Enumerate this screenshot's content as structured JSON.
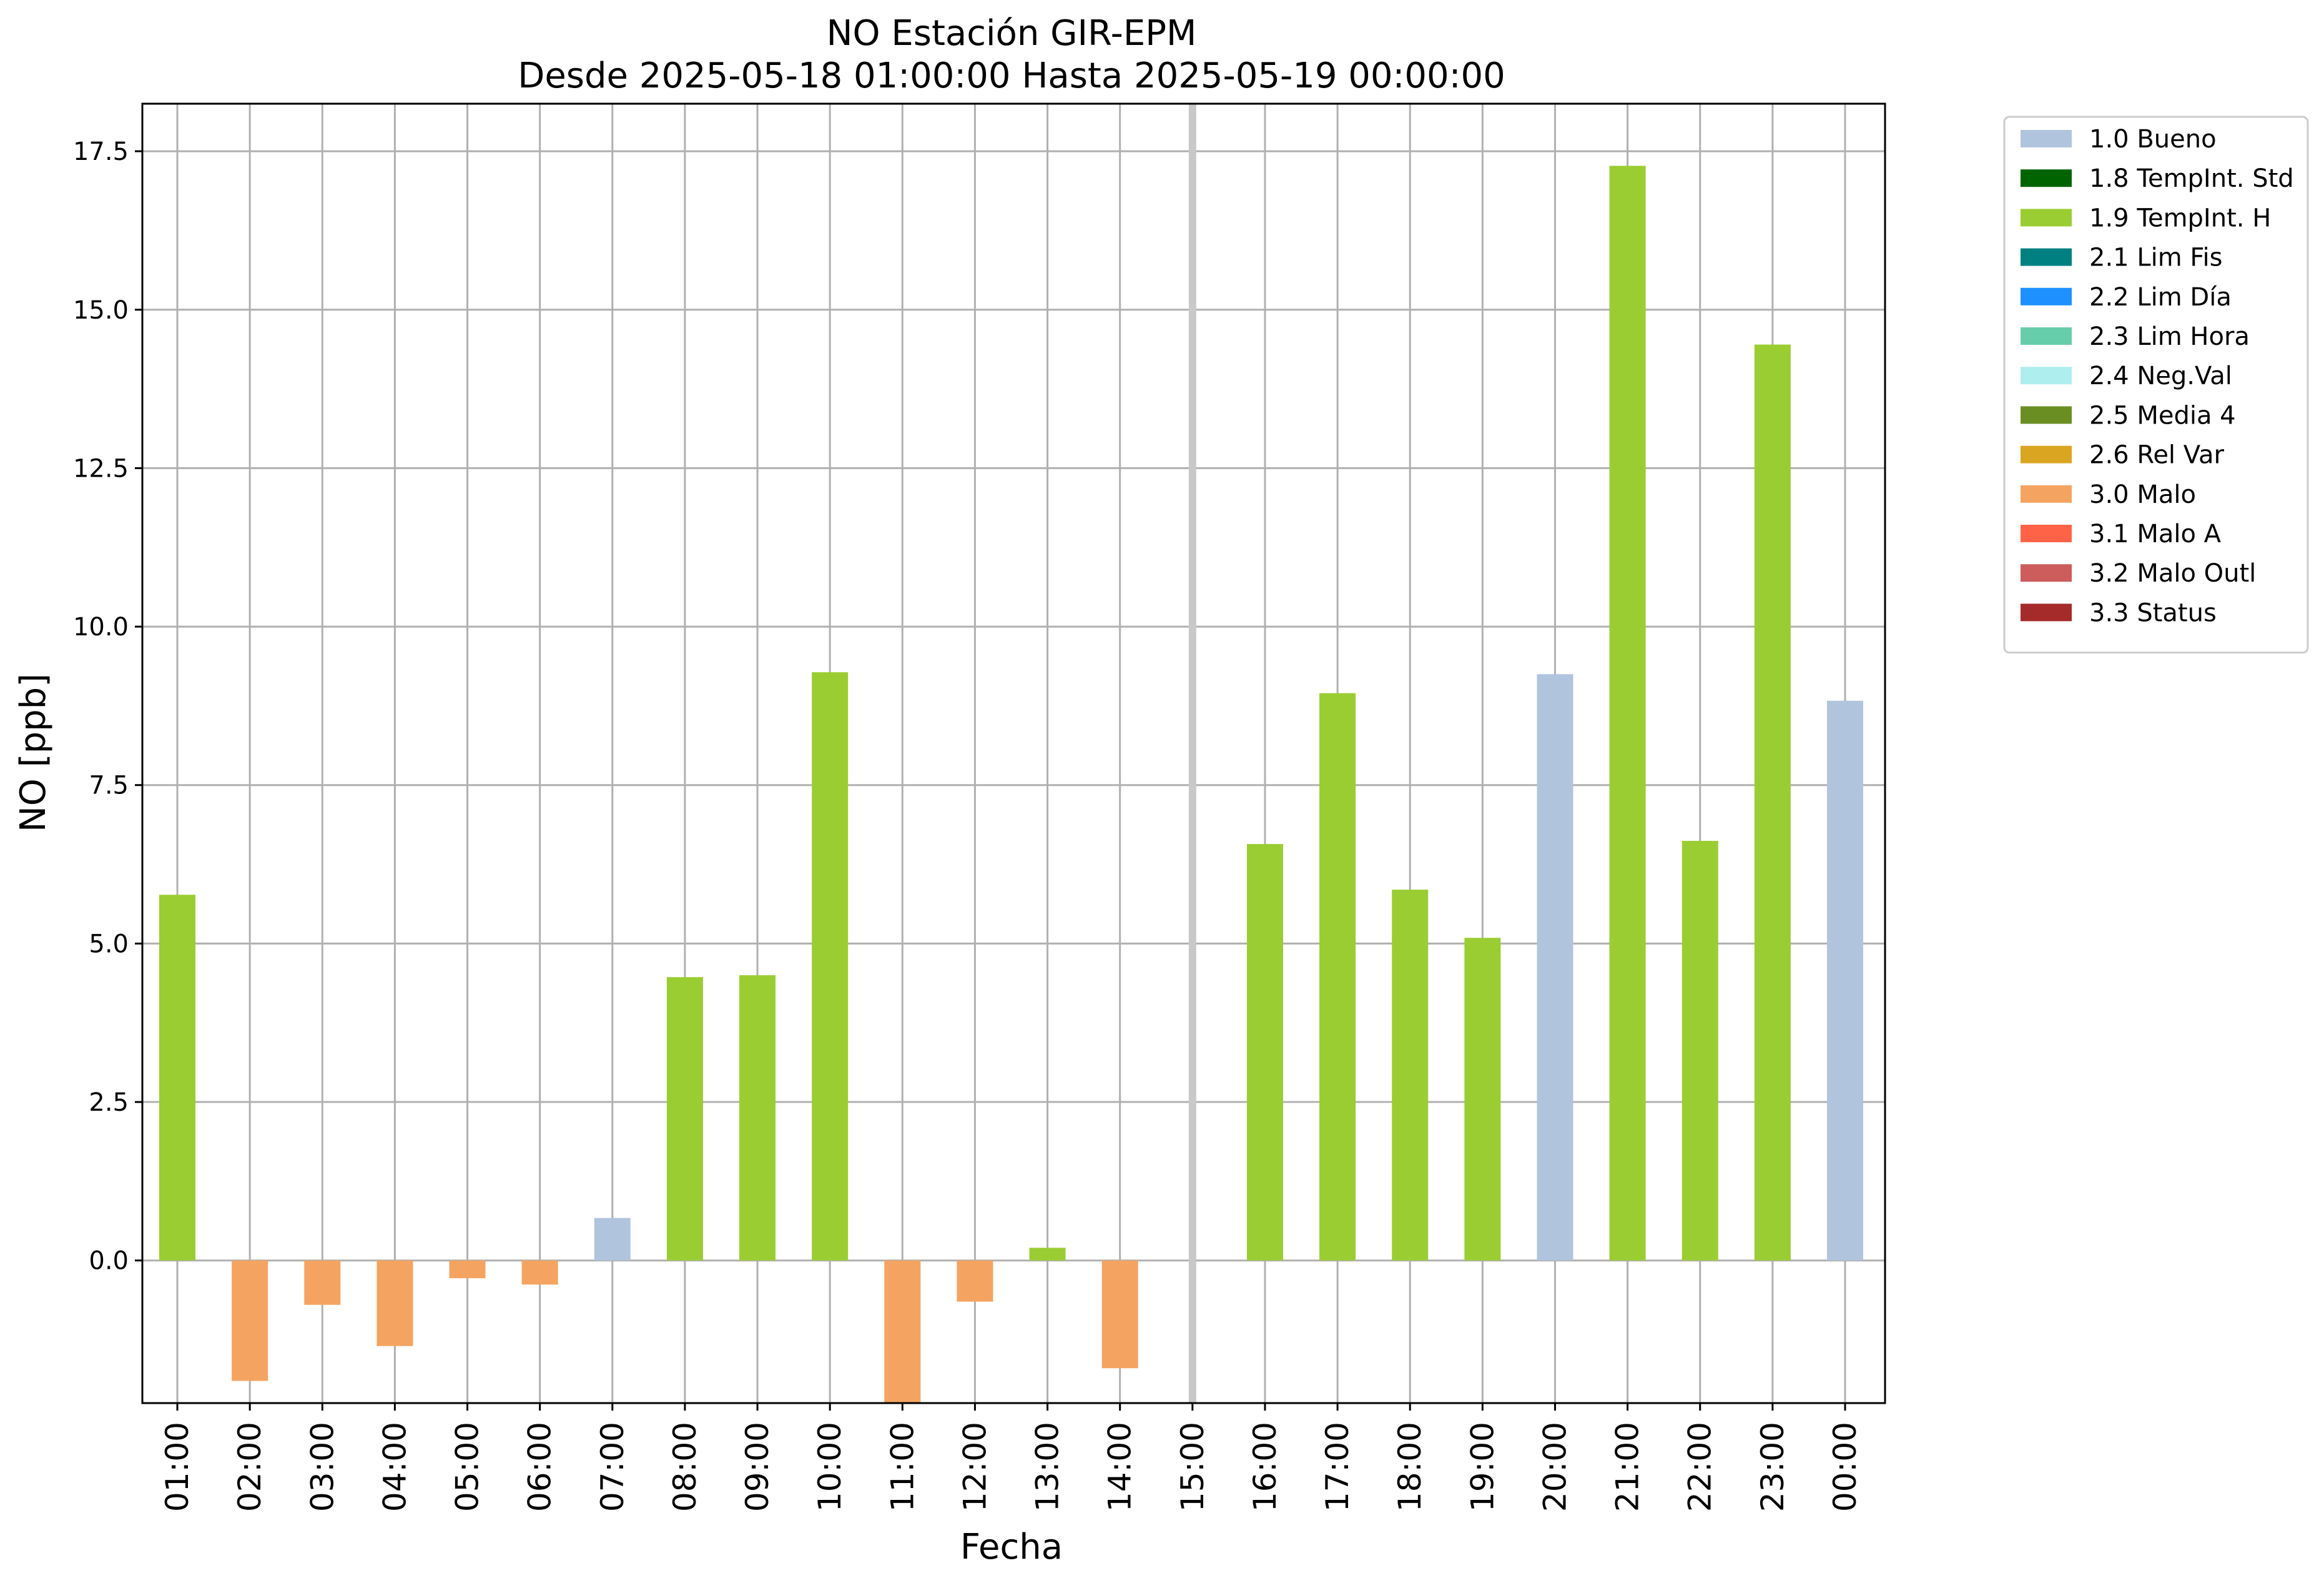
{
  "chart_data": {
    "type": "bar",
    "title": "NO Estación GIR-EPM",
    "subtitle": "Desde 2025-05-18 01:00:00 Hasta 2025-05-19 00:00:00",
    "xlabel": "Fecha",
    "ylabel": "NO [ppb]",
    "ylim": [
      -2.25,
      18.25
    ],
    "yticks": [
      "0.0",
      "2.5",
      "5.0",
      "7.5",
      "10.0",
      "12.5",
      "15.0",
      "17.5"
    ],
    "grid": true,
    "legend_position": "outside-top-right",
    "categories": [
      "01:00",
      "02:00",
      "03:00",
      "04:00",
      "05:00",
      "06:00",
      "07:00",
      "08:00",
      "09:00",
      "10:00",
      "11:00",
      "12:00",
      "13:00",
      "14:00",
      "15:00",
      "16:00",
      "17:00",
      "18:00",
      "19:00",
      "20:00",
      "21:00",
      "22:00",
      "23:00",
      "00:00"
    ],
    "values": [
      5.77,
      -1.9,
      -0.7,
      -1.35,
      -0.28,
      -0.38,
      0.67,
      4.47,
      4.5,
      9.28,
      -2.3,
      -0.65,
      0.2,
      -1.7,
      null,
      6.57,
      8.95,
      5.85,
      5.09,
      9.25,
      17.27,
      6.62,
      14.45,
      8.83
    ],
    "flags": [
      "1.9",
      "3.0",
      "3.0",
      "3.0",
      "3.0",
      "3.0",
      "1.0",
      "1.9",
      "1.9",
      "1.9",
      "3.0",
      "3.0",
      "1.9",
      "3.0",
      null,
      "1.9",
      "1.9",
      "1.9",
      "1.9",
      "1.0",
      "1.9",
      "1.9",
      "1.9",
      "1.0"
    ],
    "missing_marker_category": "15:00",
    "legend": [
      {
        "code": "1.0",
        "label": "1.0 Bueno",
        "color": "#b0c4de"
      },
      {
        "code": "1.8",
        "label": "1.8 TempInt. Std",
        "color": "#006400"
      },
      {
        "code": "1.9",
        "label": "1.9 TempInt. H",
        "color": "#9acd32"
      },
      {
        "code": "2.1",
        "label": "2.1 Lim Fis",
        "color": "#008080"
      },
      {
        "code": "2.2",
        "label": "2.2 Lim Día",
        "color": "#1e90ff"
      },
      {
        "code": "2.3",
        "label": "2.3 Lim Hora",
        "color": "#66cdaa"
      },
      {
        "code": "2.4",
        "label": "2.4 Neg.Val",
        "color": "#afeeee"
      },
      {
        "code": "2.5",
        "label": "2.5 Media 4",
        "color": "#6b8e23"
      },
      {
        "code": "2.6",
        "label": "2.6 Rel Var",
        "color": "#daa520"
      },
      {
        "code": "3.0",
        "label": "3.0 Malo",
        "color": "#f4a460"
      },
      {
        "code": "3.1",
        "label": "3.1 Malo A",
        "color": "#ff6347"
      },
      {
        "code": "3.2",
        "label": "3.2 Malo Outl",
        "color": "#cd5c5c"
      },
      {
        "code": "3.3",
        "label": "3.3 Status",
        "color": "#a52a2a"
      }
    ]
  }
}
